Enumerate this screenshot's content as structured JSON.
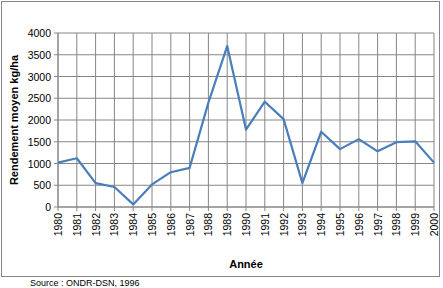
{
  "chart_data": {
    "type": "line",
    "x_label": "Année",
    "y_label": "Rendement moyen kg/ha",
    "annotations": [
      "Source : ONDR-DSN, 1996"
    ],
    "categories": [
      "1980",
      "1981",
      "1982",
      "1983",
      "1984",
      "1985",
      "1986",
      "1987",
      "1988",
      "1989",
      "1990",
      "1991",
      "1992",
      "1993",
      "1994",
      "1995",
      "1996",
      "1997",
      "1998",
      "1999",
      "2000"
    ],
    "values": [
      1020,
      1120,
      550,
      460,
      60,
      520,
      800,
      900,
      2400,
      3700,
      1780,
      2420,
      2020,
      550,
      1730,
      1330,
      1560,
      1280,
      1490,
      1510,
      1020
    ],
    "color": "#4a7ebb",
    "ylim": [
      0,
      4000
    ],
    "yticks": [
      0,
      500,
      1000,
      1500,
      2000,
      2500,
      3000,
      3500,
      4000
    ],
    "grid": true
  }
}
